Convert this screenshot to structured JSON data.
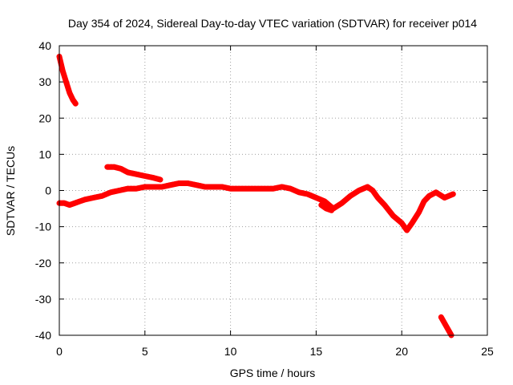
{
  "chart_data": {
    "type": "scatter",
    "title": "Day 354 of 2024, Sidereal Day-to-day VTEC variation (SDTVAR) for receiver p014",
    "xlabel": "GPS time / hours",
    "ylabel": "SDTVAR / TECUs",
    "xlim": [
      0,
      25
    ],
    "ylim": [
      -40,
      40
    ],
    "xticks": [
      0,
      5,
      10,
      15,
      20,
      25
    ],
    "yticks": [
      40,
      30,
      20,
      10,
      0,
      -10,
      -20,
      -30,
      -40
    ],
    "xtick_labels": [
      "0",
      "5",
      "10",
      "15",
      "20",
      "25"
    ],
    "ytick_labels": [
      "40",
      "30",
      "20",
      "10",
      "0",
      "-10",
      "-20",
      "-30",
      "-40"
    ],
    "grid": true,
    "series_color": "#ff0000",
    "series": [
      {
        "name": "sdtvar-early",
        "x": [
          0.0,
          0.2,
          0.4,
          0.6,
          0.8,
          0.95
        ],
        "y": [
          37,
          33,
          30,
          27,
          25,
          24
        ]
      },
      {
        "name": "sdtvar-main",
        "x": [
          0.0,
          0.3,
          0.6,
          0.9,
          1.2,
          1.5,
          2.0,
          2.5,
          3.0,
          3.5,
          4.0,
          4.5,
          5.0,
          5.5,
          6.0,
          6.5,
          7.0,
          7.5,
          8.0,
          8.5,
          9.0,
          9.5,
          10.0,
          10.5,
          11.0,
          11.5,
          12.0,
          12.5,
          13.0,
          13.5,
          14.0,
          14.5,
          15.0,
          15.5,
          16.0,
          16.5,
          17.0,
          17.5,
          18.0,
          18.3,
          18.6,
          19.0,
          19.5,
          20.0,
          20.3,
          20.6,
          21.0,
          21.3,
          21.6,
          22.0,
          22.5,
          23.0
        ],
        "y": [
          -3.5,
          -3.5,
          -4,
          -3.5,
          -3,
          -2.5,
          -2,
          -1.5,
          -0.5,
          0,
          0.5,
          0.5,
          1,
          1,
          1,
          1.5,
          2,
          2,
          1.5,
          1,
          1,
          1,
          0.5,
          0.5,
          0.5,
          0.5,
          0.5,
          0.5,
          1,
          0.5,
          -0.5,
          -1,
          -2,
          -3,
          -5,
          -3.5,
          -1.5,
          0,
          1,
          0,
          -2,
          -4,
          -7,
          -9,
          -11,
          -9,
          -6,
          -3,
          -1.5,
          -0.5,
          -2,
          -1
        ]
      },
      {
        "name": "sdtvar-upper-arc",
        "x": [
          2.8,
          3.2,
          3.6,
          4.0,
          4.5,
          5.0,
          5.5,
          5.9
        ],
        "y": [
          6.5,
          6.5,
          6,
          5,
          4.5,
          4,
          3.5,
          3
        ]
      },
      {
        "name": "sdtvar-dip",
        "x": [
          15.3,
          15.6,
          15.9
        ],
        "y": [
          -4,
          -5,
          -5.5
        ]
      },
      {
        "name": "sdtvar-late",
        "x": [
          22.3,
          22.6,
          22.9
        ],
        "y": [
          -35,
          -37.5,
          -40
        ]
      }
    ]
  }
}
